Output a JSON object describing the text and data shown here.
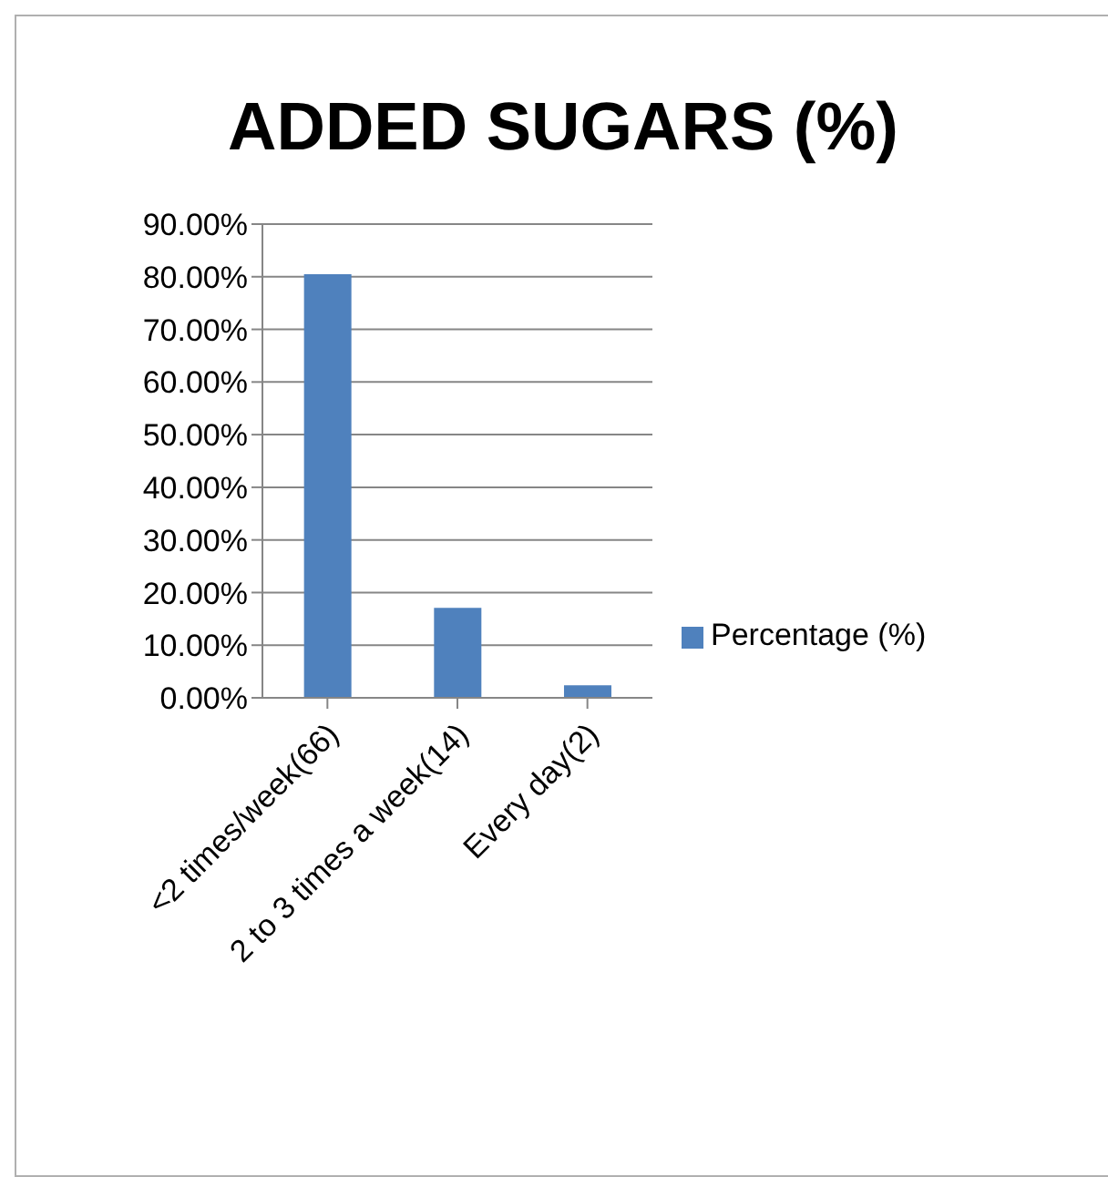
{
  "chart_data": {
    "type": "bar",
    "title": "ADDED SUGARS (%)",
    "categories": [
      "<2 times/week(66)",
      "2 to 3 times a week(14)",
      "Every day(2)"
    ],
    "series": [
      {
        "name": "Percentage (%)",
        "color": "#4f81bd",
        "values": [
          80.5,
          17.1,
          2.4
        ]
      }
    ],
    "ylim": [
      0,
      90
    ],
    "yticks": [
      {
        "value": 0,
        "label": "0.00%"
      },
      {
        "value": 10,
        "label": "10.00%"
      },
      {
        "value": 20,
        "label": "20.00%"
      },
      {
        "value": 30,
        "label": "30.00%"
      },
      {
        "value": 40,
        "label": "40.00%"
      },
      {
        "value": 50,
        "label": "50.00%"
      },
      {
        "value": 60,
        "label": "60.00%"
      },
      {
        "value": 70,
        "label": "70.00%"
      },
      {
        "value": 80,
        "label": "80.00%"
      },
      {
        "value": 90,
        "label": "90.00%"
      }
    ],
    "grid": "y",
    "legend": "right"
  }
}
